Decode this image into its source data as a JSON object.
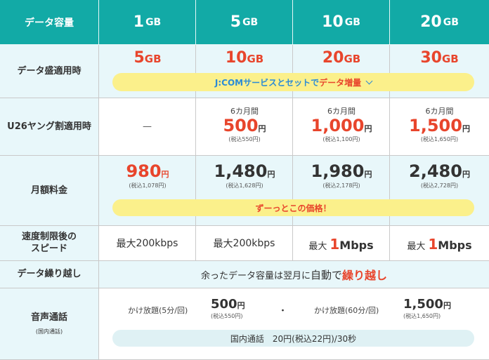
{
  "header": {
    "label": "データ容量",
    "plans": [
      {
        "size": "1",
        "unit": "GB"
      },
      {
        "size": "5",
        "unit": "GB"
      },
      {
        "size": "10",
        "unit": "GB"
      },
      {
        "size": "20",
        "unit": "GB"
      }
    ]
  },
  "data_bonus": {
    "label": "データ盛適用時",
    "values": [
      {
        "size": "5",
        "unit": "GB"
      },
      {
        "size": "10",
        "unit": "GB"
      },
      {
        "size": "20",
        "unit": "GB"
      },
      {
        "size": "30",
        "unit": "GB"
      }
    ],
    "banner_prefix": "J:COMサービスとセットで",
    "banner_highlight": "データ増量"
  },
  "u26": {
    "label": "U26ヤング割適用時",
    "dash": "—",
    "plans": [
      {
        "period": "6カ月間",
        "price": "500",
        "yen": "円",
        "tax": "(税込550円)"
      },
      {
        "period": "6カ月間",
        "price": "1,000",
        "yen": "円",
        "tax": "(税込1,100円)"
      },
      {
        "period": "6カ月間",
        "price": "1,500",
        "yen": "円",
        "tax": "(税込1,650円)"
      }
    ]
  },
  "monthly": {
    "label": "月額料金",
    "plans": [
      {
        "price": "980",
        "yen": "円",
        "tax": "(税込1,078円)"
      },
      {
        "price": "1,480",
        "yen": "円",
        "tax": "(税込1,628円)"
      },
      {
        "price": "1,980",
        "yen": "円",
        "tax": "(税込2,178円)"
      },
      {
        "price": "2,480",
        "yen": "円",
        "tax": "(税込2,728円)"
      }
    ],
    "banner_prefix": "ずーっと",
    "banner_highlight": "この価格！"
  },
  "speed": {
    "label_line1": "速度制限後の",
    "label_line2": "スピード",
    "plans": [
      {
        "prefix": "最大",
        "value": "200kbps"
      },
      {
        "prefix": "最大",
        "value": "200kbps"
      },
      {
        "prefix": "最大",
        "big": "1",
        "unit": "Mbps"
      },
      {
        "prefix": "最大",
        "big": "1",
        "unit": "Mbps"
      }
    ]
  },
  "rollover": {
    "label": "データ繰り越し",
    "text_prefix": "余ったデータ容量は翌月に",
    "text_mid": "自動で",
    "text_highlight": "繰り越し"
  },
  "voice": {
    "label": "音声通話",
    "sublabel": "(国内通話)",
    "option1_name": "かけ放題(5分/回)",
    "option1_price": "500",
    "option1_yen": "円",
    "option1_tax": "(税込550円)",
    "separator": "・",
    "option2_name": "かけ放題(60分/回)",
    "option2_price": "1,500",
    "option2_yen": "円",
    "option2_tax": "(税込1,650円)",
    "domestic": "国内通話　20円(税込22円)/30秒"
  },
  "colors": {
    "header_bg": "#12aaa6",
    "row_tint": "#e8f7fa",
    "accent_red": "#e8452c",
    "banner_yellow": "#fbf08b",
    "banner_text_blue": "#2b8bd6"
  }
}
